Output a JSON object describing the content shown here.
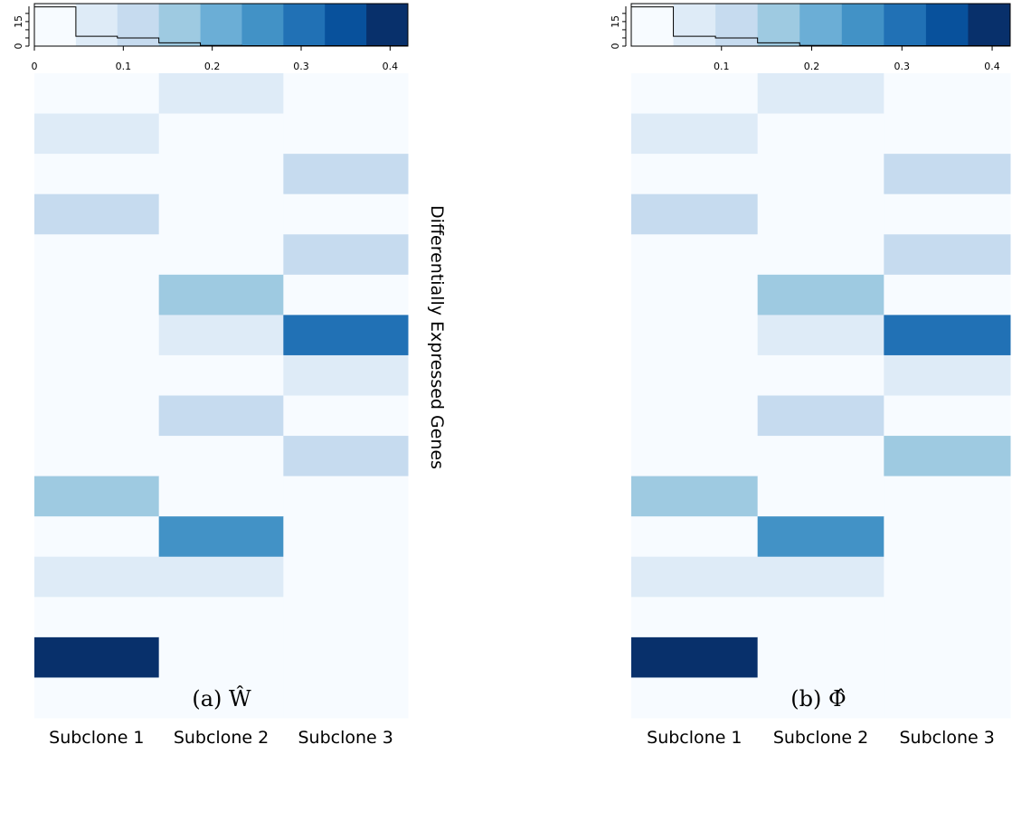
{
  "colors": [
    "#f7fbff",
    "#deebf7",
    "#c6dbef",
    "#9ecae1",
    "#6baed6",
    "#4292c6",
    "#2171b5",
    "#08519c",
    "#08306b"
  ],
  "key_axis_label": "15",
  "key_axis_zero": "0",
  "key_ticks": [
    0,
    0.1,
    0.2,
    0.3,
    0.4
  ],
  "row_label": "Differentially Expressed Genes",
  "chart_data": [
    {
      "type": "heatmap",
      "caption": "(a) Ŵ",
      "columns": [
        "Subclone 1",
        "Subclone 2",
        "Subclone 3"
      ],
      "key": {
        "x_ticks": [
          "0",
          "0.1",
          "0.2",
          "0.3",
          "0.4"
        ],
        "y_ticks": [
          "0",
          "15"
        ],
        "range": [
          0,
          0.42
        ],
        "histogram": [
          24,
          6,
          5,
          2,
          0.4,
          0.3,
          0.3,
          0.3,
          0.3
        ]
      },
      "values": [
        [
          0.0,
          0.05,
          0.0
        ],
        [
          0.05,
          0.0,
          0.0
        ],
        [
          0.0,
          0.0,
          0.1
        ],
        [
          0.1,
          0.0,
          0.0
        ],
        [
          0.0,
          0.0,
          0.1
        ],
        [
          0.0,
          0.15,
          0.0
        ],
        [
          0.0,
          0.05,
          0.3
        ],
        [
          0.0,
          0.0,
          0.05
        ],
        [
          0.0,
          0.1,
          0.0
        ],
        [
          0.0,
          0.0,
          0.1
        ],
        [
          0.15,
          0.0,
          0.0
        ],
        [
          0.0,
          0.25,
          0.0
        ],
        [
          0.05,
          0.05,
          0.0
        ],
        [
          0.0,
          0.0,
          0.0
        ],
        [
          0.41,
          0.0,
          0.0
        ],
        [
          0.0,
          0.0,
          0.0
        ]
      ]
    },
    {
      "type": "heatmap",
      "caption": "(b) Φ̂",
      "columns": [
        "Subclone 1",
        "Subclone 2",
        "Subclone 3"
      ],
      "key": {
        "x_ticks": [
          "0.1",
          "0.2",
          "0.3",
          "0.4"
        ],
        "y_ticks": [
          "0",
          "15"
        ],
        "range": [
          0,
          0.42
        ],
        "histogram": [
          24,
          6,
          5,
          2,
          0.4,
          0.3,
          0.3,
          0.3,
          0.3
        ]
      },
      "values": [
        [
          0.0,
          0.05,
          0.0
        ],
        [
          0.05,
          0.0,
          0.0
        ],
        [
          0.0,
          0.0,
          0.1
        ],
        [
          0.1,
          0.0,
          0.0
        ],
        [
          0.0,
          0.0,
          0.1
        ],
        [
          0.0,
          0.15,
          0.0
        ],
        [
          0.0,
          0.05,
          0.3
        ],
        [
          0.0,
          0.0,
          0.05
        ],
        [
          0.0,
          0.1,
          0.0
        ],
        [
          0.0,
          0.0,
          0.15
        ],
        [
          0.15,
          0.0,
          0.0
        ],
        [
          0.0,
          0.25,
          0.0
        ],
        [
          0.05,
          0.05,
          0.0
        ],
        [
          0.0,
          0.0,
          0.0
        ],
        [
          0.41,
          0.0,
          0.0
        ],
        [
          0.0,
          0.0,
          0.0
        ]
      ]
    }
  ]
}
